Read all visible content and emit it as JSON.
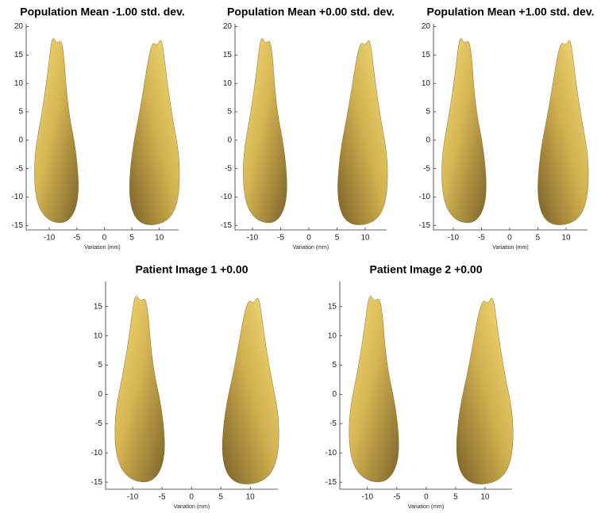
{
  "chart_data": [
    {
      "type": "render",
      "title": "Population Mean -1.00 std. dev.",
      "x_label": "Variation (mm)",
      "xlim": [
        -14.2,
        13.5
      ],
      "ylim": [
        -15.8,
        20.5
      ],
      "xticks": [
        -10,
        -5,
        0,
        5,
        10
      ],
      "yticks": [
        -15,
        -10,
        -5,
        0,
        5,
        10,
        15,
        20
      ]
    },
    {
      "type": "render",
      "title": "Population Mean +0.00 std. dev.",
      "x_label": "Variation (mm)",
      "xlim": [
        -13.1,
        13.8
      ],
      "ylim": [
        -15.8,
        20.5
      ],
      "xticks": [
        -10,
        -5,
        0,
        5,
        10
      ],
      "yticks": [
        -15,
        -10,
        -5,
        0,
        5,
        10,
        15,
        20
      ]
    },
    {
      "type": "render",
      "title": "Population Mean +1.00 std. dev.",
      "x_label": "Variation (mm)",
      "xlim": [
        -13.5,
        13.8
      ],
      "ylim": [
        -15.8,
        20.5
      ],
      "xticks": [
        -10,
        -5,
        0,
        5,
        10
      ],
      "yticks": [
        -15,
        -10,
        -5,
        0,
        5,
        10,
        15,
        20
      ]
    },
    {
      "type": "render",
      "title": "Patient Image 1 +0.00",
      "x_label": "Variation (mm)",
      "xlim": [
        -14.6,
        14.7
      ],
      "ylim": [
        -16.2,
        19.3
      ],
      "xticks": [
        -10,
        -5,
        0,
        5,
        10
      ],
      "yticks": [
        -15,
        -10,
        -5,
        0,
        5,
        10,
        15
      ]
    },
    {
      "type": "render",
      "title": "Patient Image 2 +0.00",
      "x_label": "Variation (mm)",
      "xlim": [
        -14.7,
        14.6
      ],
      "ylim": [
        -16.2,
        19.3
      ],
      "xticks": [
        -10,
        -5,
        0,
        5,
        10
      ],
      "yticks": [
        -15,
        -10,
        -5,
        0,
        5,
        10,
        15
      ]
    }
  ]
}
